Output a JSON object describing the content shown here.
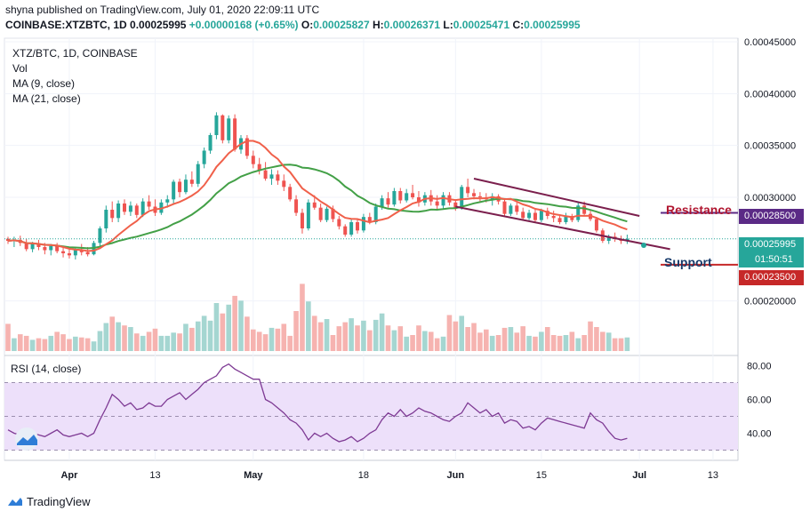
{
  "header": {
    "published": "shyna published on TradingView.com, July 01, 2020 22:09:11 UTC",
    "symbol": "COINBASE:XTZBTC, 1D",
    "last": "0.00025995",
    "change": "+0.00000168 (+0.65%)",
    "o_label": "O:",
    "o": "0.00025827",
    "h_label": "H:",
    "h": "0.00026371",
    "l_label": "L:",
    "l": "0.00025471",
    "c_label": "C:",
    "c": "0.00025995"
  },
  "legend": {
    "title": "XTZ/BTC, 1D, COINBASE",
    "vol": "Vol",
    "ma9": "MA (9, close)",
    "ma21": "MA (21, close)"
  },
  "annotations": {
    "resistance": "Resistance",
    "support": "Support"
  },
  "badges": {
    "resistance_price": "0.00028500",
    "current_price": "0.00025995",
    "countdown": "01:50:51",
    "support_price": "0.00023500"
  },
  "colors": {
    "up": "#26a69a",
    "down": "#ef5350",
    "vol_up": "#a5d6d1",
    "vol_down": "#f6b3b0",
    "ma9": "#f0604a",
    "ma21": "#43a047",
    "channel": "#7b1f4d",
    "resistance_line": "#5b2a86",
    "support_line": "#c62828",
    "rsi": "#7e3a94",
    "rsi_band": "#ede0fa"
  },
  "footer": {
    "brand": "TradingView",
    "logo_icon": "tradingview-cloud-icon"
  },
  "chart_data": {
    "type": "candlestick",
    "price_axis": {
      "ylim": [
        0.00015,
        0.00045
      ],
      "ticks": [
        "0.00045000",
        "0.00040000",
        "0.00035000",
        "0.00030000",
        "0.00020000"
      ],
      "tick_values": [
        0.00045,
        0.0004,
        0.00035,
        0.0003,
        0.0002
      ]
    },
    "x_axis": {
      "ticks": [
        "Apr",
        "13",
        "May",
        "18",
        "Jun",
        "15",
        "Jul",
        "13"
      ],
      "tick_index": [
        10,
        24,
        40,
        58,
        73,
        87,
        103,
        115
      ]
    },
    "ohlc": [
      [
        0.00026,
        0.000262,
        0.000255,
        0.000258
      ],
      [
        0.000258,
        0.000262,
        0.000252,
        0.000259
      ],
      [
        0.000259,
        0.000263,
        0.000253,
        0.000256
      ],
      [
        0.000256,
        0.00026,
        0.000248,
        0.00025
      ],
      [
        0.00025,
        0.000257,
        0.000247,
        0.000255
      ],
      [
        0.000255,
        0.000259,
        0.000249,
        0.000252
      ],
      [
        0.000252,
        0.000256,
        0.000245,
        0.000249
      ],
      [
        0.000249,
        0.000255,
        0.000244,
        0.000253
      ],
      [
        0.000253,
        0.000256,
        0.000246,
        0.000248
      ],
      [
        0.000248,
        0.000253,
        0.000242,
        0.000246
      ],
      [
        0.000246,
        0.000251,
        0.000241,
        0.000244
      ],
      [
        0.000244,
        0.000252,
        0.00024,
        0.000249
      ],
      [
        0.000249,
        0.000255,
        0.000244,
        0.000247
      ],
      [
        0.000247,
        0.000252,
        0.000243,
        0.000245
      ],
      [
        0.000245,
        0.000258,
        0.000244,
        0.000256
      ],
      [
        0.000256,
        0.000272,
        0.000252,
        0.00027
      ],
      [
        0.00027,
        0.000292,
        0.000266,
        0.000288
      ],
      [
        0.000288,
        0.000296,
        0.000276,
        0.00028
      ],
      [
        0.00028,
        0.000297,
        0.000276,
        0.000294
      ],
      [
        0.000294,
        0.000298,
        0.000283,
        0.000286
      ],
      [
        0.000286,
        0.000296,
        0.000282,
        0.000292
      ],
      [
        0.000292,
        0.000294,
        0.00028,
        0.000283
      ],
      [
        0.000283,
        0.000299,
        0.000281,
        0.000296
      ],
      [
        0.000296,
        0.000302,
        0.000288,
        0.000291
      ],
      [
        0.000291,
        0.000298,
        0.000282,
        0.000285
      ],
      [
        0.000285,
        0.000298,
        0.000283,
        0.000295
      ],
      [
        0.000295,
        0.000302,
        0.00029,
        0.000298
      ],
      [
        0.000298,
        0.000317,
        0.000294,
        0.000315
      ],
      [
        0.000315,
        0.000318,
        0.0003,
        0.000305
      ],
      [
        0.000305,
        0.000322,
        0.000303,
        0.000317
      ],
      [
        0.000317,
        0.000325,
        0.00031,
        0.000313
      ],
      [
        0.000313,
        0.000335,
        0.00031,
        0.000332
      ],
      [
        0.000332,
        0.000348,
        0.000328,
        0.000345
      ],
      [
        0.000345,
        0.000362,
        0.000342,
        0.00036
      ],
      [
        0.00036,
        0.000382,
        0.000356,
        0.000379
      ],
      [
        0.000379,
        0.00038,
        0.000352,
        0.000355
      ],
      [
        0.000355,
        0.000379,
        0.000352,
        0.000376
      ],
      [
        0.000376,
        0.00038,
        0.000344,
        0.000346
      ],
      [
        0.000346,
        0.00036,
        0.000342,
        0.000357
      ],
      [
        0.000357,
        0.00036,
        0.000337,
        0.00034
      ],
      [
        0.00034,
        0.000345,
        0.000328,
        0.000332
      ],
      [
        0.000332,
        0.000338,
        0.000322,
        0.000326
      ],
      [
        0.000326,
        0.000334,
        0.000316,
        0.000318
      ],
      [
        0.000318,
        0.000327,
        0.000312,
        0.000322
      ],
      [
        0.000322,
        0.000326,
        0.000312,
        0.000316
      ],
      [
        0.000316,
        0.000322,
        0.000306,
        0.00031
      ],
      [
        0.00031,
        0.000313,
        0.000296,
        0.000298
      ],
      [
        0.000298,
        0.000302,
        0.000282,
        0.000285
      ],
      [
        0.000285,
        0.000289,
        0.000265,
        0.00027
      ],
      [
        0.00027,
        0.000298,
        0.000268,
        0.000295
      ],
      [
        0.000295,
        0.000302,
        0.000288,
        0.00029
      ],
      [
        0.00029,
        0.000294,
        0.000276,
        0.000278
      ],
      [
        0.000278,
        0.000291,
        0.000276,
        0.000289
      ],
      [
        0.000289,
        0.000292,
        0.000276,
        0.000279
      ],
      [
        0.000279,
        0.000282,
        0.000269,
        0.000272
      ],
      [
        0.000272,
        0.000274,
        0.000262,
        0.000264
      ],
      [
        0.000264,
        0.000279,
        0.000262,
        0.000276
      ],
      [
        0.000276,
        0.000279,
        0.000265,
        0.000268
      ],
      [
        0.000268,
        0.000284,
        0.000266,
        0.000281
      ],
      [
        0.000281,
        0.000285,
        0.000274,
        0.000276
      ],
      [
        0.000276,
        0.000294,
        0.000274,
        0.000291
      ],
      [
        0.000291,
        0.000302,
        0.000288,
        0.000299
      ],
      [
        0.000299,
        0.000305,
        0.00029,
        0.000293
      ],
      [
        0.000293,
        0.000309,
        0.000291,
        0.000306
      ],
      [
        0.000306,
        0.000309,
        0.000294,
        0.000297
      ],
      [
        0.000297,
        0.000308,
        0.000295,
        0.000304
      ],
      [
        0.000304,
        0.000312,
        0.000298,
        0.0003
      ],
      [
        0.0003,
        0.000306,
        0.000291,
        0.000295
      ],
      [
        0.000295,
        0.000305,
        0.000292,
        0.000302
      ],
      [
        0.000302,
        0.000307,
        0.000292,
        0.000296
      ],
      [
        0.000296,
        0.000302,
        0.000288,
        0.000292
      ],
      [
        0.000292,
        0.000305,
        0.000289,
        0.000302
      ],
      [
        0.000302,
        0.000305,
        0.000292,
        0.000295
      ],
      [
        0.000295,
        0.000298,
        0.000287,
        0.00029
      ],
      [
        0.00029,
        0.000312,
        0.000288,
        0.00031
      ],
      [
        0.00031,
        0.000318,
        0.0003,
        0.000304
      ],
      [
        0.000304,
        0.000308,
        0.000298,
        0.000301
      ],
      [
        0.000301,
        0.000305,
        0.000296,
        0.0003
      ],
      [
        0.0003,
        0.000304,
        0.000295,
        0.000298
      ],
      [
        0.000298,
        0.000304,
        0.000292,
        0.000301
      ],
      [
        0.000301,
        0.000303,
        0.000293,
        0.000296
      ],
      [
        0.000296,
        0.000298,
        0.000282,
        0.000284
      ],
      [
        0.000284,
        0.000294,
        0.000282,
        0.000292
      ],
      [
        0.000292,
        0.000295,
        0.000283,
        0.000286
      ],
      [
        0.000286,
        0.00029,
        0.000278,
        0.00028
      ],
      [
        0.00028,
        0.000288,
        0.000278,
        0.000285
      ],
      [
        0.000285,
        0.000288,
        0.000276,
        0.000278
      ],
      [
        0.000278,
        0.000289,
        0.000276,
        0.000287
      ],
      [
        0.000287,
        0.00029,
        0.000279,
        0.000282
      ],
      [
        0.000282,
        0.000287,
        0.000276,
        0.00028
      ],
      [
        0.00028,
        0.000283,
        0.000274,
        0.000276
      ],
      [
        0.000276,
        0.000285,
        0.000274,
        0.000282
      ],
      [
        0.000282,
        0.000284,
        0.000276,
        0.000278
      ],
      [
        0.000278,
        0.000295,
        0.000276,
        0.000292
      ],
      [
        0.000292,
        0.000296,
        0.000282,
        0.000284
      ],
      [
        0.000284,
        0.000287,
        0.000277,
        0.000279
      ],
      [
        0.000279,
        0.000281,
        0.000266,
        0.000268
      ],
      [
        0.000268,
        0.00027,
        0.000256,
        0.000258
      ],
      [
        0.000258,
        0.000264,
        0.000255,
        0.000262
      ],
      [
        0.000262,
        0.000266,
        0.000257,
        0.00026
      ],
      [
        0.00026,
        0.000263,
        0.000255,
        0.000258
      ],
      [
        0.000258,
        0.000264,
        0.000255,
        0.00026
      ]
    ],
    "volume": [
      0.34,
      0.16,
      0.21,
      0.19,
      0.14,
      0.16,
      0.15,
      0.19,
      0.24,
      0.21,
      0.15,
      0.18,
      0.17,
      0.16,
      0.12,
      0.25,
      0.35,
      0.43,
      0.36,
      0.32,
      0.3,
      0.22,
      0.19,
      0.24,
      0.28,
      0.19,
      0.19,
      0.23,
      0.22,
      0.34,
      0.29,
      0.37,
      0.44,
      0.38,
      0.6,
      0.47,
      0.58,
      0.69,
      0.63,
      0.43,
      0.27,
      0.24,
      0.21,
      0.29,
      0.28,
      0.34,
      0.19,
      0.5,
      0.84,
      0.62,
      0.44,
      0.36,
      0.4,
      0.2,
      0.31,
      0.36,
      0.41,
      0.32,
      0.38,
      0.26,
      0.39,
      0.47,
      0.32,
      0.26,
      0.31,
      0.18,
      0.2,
      0.32,
      0.25,
      0.24,
      0.16,
      0.18,
      0.45,
      0.37,
      0.44,
      0.3,
      0.35,
      0.23,
      0.27,
      0.19,
      0.2,
      0.29,
      0.3,
      0.23,
      0.31,
      0.19,
      0.18,
      0.24,
      0.3,
      0.2,
      0.19,
      0.2,
      0.24,
      0.16,
      0.2,
      0.37,
      0.3,
      0.24,
      0.23,
      0.16,
      0.16,
      0.17
    ],
    "ma_series": [
      {
        "name": "MA (9, close)",
        "periods": 9
      },
      {
        "name": "MA (21, close)",
        "periods": 21
      }
    ],
    "trend_lines": [
      {
        "role": "channel-upper",
        "points": [
          [
            76,
            0.000318
          ],
          [
            103,
            0.000282
          ]
        ]
      },
      {
        "role": "channel-lower",
        "points": [
          [
            73,
            0.000291
          ],
          [
            108,
            0.00025
          ]
        ]
      },
      {
        "role": "resistance",
        "value": 0.000285
      },
      {
        "role": "support",
        "value": 0.000235
      }
    ],
    "rsi": {
      "label": "RSI (14, close)",
      "ylim": [
        25,
        85
      ],
      "band": [
        30,
        70
      ],
      "ticks": [
        "80.00",
        "60.00",
        "40.00"
      ],
      "tick_values": [
        80,
        60,
        40
      ],
      "values": [
        42,
        40,
        39,
        41,
        40,
        39,
        38,
        40,
        42,
        39,
        38,
        39,
        40,
        38,
        40,
        48,
        55,
        63,
        60,
        56,
        58,
        54,
        55,
        58,
        56,
        56,
        60,
        62,
        64,
        60,
        63,
        66,
        70,
        72,
        74,
        79,
        81,
        78,
        76,
        74,
        72,
        72,
        60,
        58,
        55,
        52,
        48,
        46,
        42,
        36,
        40,
        38,
        40,
        37,
        35,
        36,
        38,
        35,
        37,
        40,
        42,
        48,
        52,
        50,
        54,
        50,
        52,
        55,
        53,
        52,
        50,
        48,
        47,
        50,
        52,
        58,
        55,
        52,
        54,
        50,
        52,
        46,
        48,
        47,
        43,
        44,
        42,
        46,
        49,
        48,
        47,
        46,
        45,
        44,
        43,
        52,
        48,
        46,
        41,
        37,
        36,
        37
      ]
    }
  }
}
